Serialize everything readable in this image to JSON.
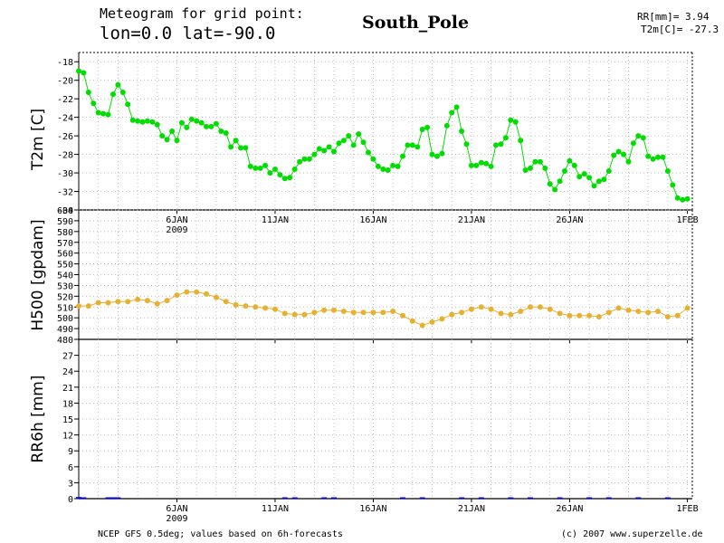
{
  "header": {
    "title": "Meteogram for grid point:",
    "coords": "lon=0.0 lat=-90.0",
    "station": "South_Pole",
    "rr_readout": "RR[mm]= 3.94",
    "t2m_readout": "T2m[C]= -27.3"
  },
  "footer": {
    "source": "NCEP GFS 0.5deg; values based on 6h-forecasts",
    "copyright": "(c) 2007 www.superzelle.de"
  },
  "chart_data": [
    {
      "type": "line",
      "ylabel": "T2m [C]",
      "ylim": [
        -34,
        -17
      ],
      "yticks": [
        -18,
        -20,
        -22,
        -24,
        -26,
        -28,
        -30,
        -32,
        -34
      ],
      "x_unit": "days since 2009-01-01",
      "xlim": [
        0,
        31.25
      ],
      "grid": true,
      "color": "#00dd00",
      "series": [
        {
          "x": [
            0,
            0.25,
            0.5,
            0.75,
            1,
            1.25,
            1.5,
            1.75,
            2,
            2.25,
            2.5,
            2.75,
            3,
            3.25,
            3.5,
            3.75,
            4,
            4.25,
            4.5,
            4.75,
            5,
            5.25,
            5.5,
            5.75,
            6,
            6.25,
            6.5,
            6.75,
            7,
            7.25,
            7.5,
            7.75,
            8,
            8.25,
            8.5,
            8.75,
            9,
            9.25,
            9.5,
            9.75,
            10,
            10.25,
            10.5,
            10.75,
            11,
            11.25,
            11.5,
            11.75,
            12,
            12.25,
            12.5,
            12.75,
            13,
            13.25,
            13.5,
            13.75,
            14,
            14.25,
            14.5,
            14.75,
            15,
            15.25,
            15.5,
            15.75,
            16,
            16.25,
            16.5,
            16.75,
            17,
            17.25,
            17.5,
            17.75,
            18,
            18.25,
            18.5,
            18.75,
            19,
            19.25,
            19.5,
            19.75,
            20,
            20.25,
            20.5,
            20.75,
            21,
            21.25,
            21.5,
            21.75,
            22,
            22.25,
            22.5,
            22.75,
            23,
            23.25,
            23.5,
            23.75,
            24,
            24.25,
            24.5,
            24.75,
            25,
            25.25,
            25.5,
            25.75,
            26,
            26.25,
            26.5,
            26.75,
            27,
            27.25,
            27.5,
            27.75,
            28,
            28.25,
            28.5,
            28.75,
            29,
            29.25,
            29.5,
            29.75,
            30,
            30.25,
            30.5,
            30.75,
            31
          ],
          "values": [
            -19.0,
            -19.2,
            -21.3,
            -22.5,
            -23.5,
            -23.6,
            -23.7,
            -21.5,
            -20.5,
            -21.3,
            -22.6,
            -24.3,
            -24.4,
            -24.5,
            -24.4,
            -24.5,
            -24.8,
            -26.0,
            -26.4,
            -25.5,
            -26.5,
            -24.6,
            -25.1,
            -24.2,
            -24.4,
            -24.6,
            -25.0,
            -25.0,
            -24.7,
            -25.5,
            -25.7,
            -27.2,
            -26.5,
            -27.3,
            -27.3,
            -29.3,
            -29.5,
            -29.5,
            -29.2,
            -30.0,
            -29.6,
            -30.2,
            -30.6,
            -30.5,
            -29.6,
            -28.8,
            -28.5,
            -28.5,
            -28.0,
            -27.4,
            -27.6,
            -27.2,
            -27.7,
            -26.8,
            -26.5,
            -26.0,
            -27.0,
            -25.8,
            -26.7,
            -27.8,
            -28.5,
            -29.3,
            -29.6,
            -29.7,
            -29.2,
            -29.3,
            -28.2,
            -27.0,
            -27.0,
            -27.2,
            -25.3,
            -25.1,
            -28.0,
            -28.2,
            -27.9,
            -24.9,
            -23.5,
            -22.9,
            -25.5,
            -26.9,
            -29.2,
            -29.2,
            -28.9,
            -29.0,
            -29.3,
            -27.0,
            -26.9,
            -26.2,
            -24.3,
            -24.5,
            -26.5,
            -29.7,
            -29.5,
            -28.8,
            -28.8,
            -29.5,
            -31.2,
            -31.8,
            -30.9,
            -29.8,
            -28.7,
            -29.2,
            -30.4,
            -30.1,
            -30.5,
            -31.4,
            -30.9,
            -30.7,
            -29.8,
            -28.1,
            -27.7,
            -28.0,
            -28.8,
            -26.8,
            -26.0,
            -26.2,
            -28.2,
            -28.5,
            -28.3,
            -28.3,
            -29.8,
            -31.3,
            -32.7,
            -32.9,
            -32.8
          ]
        }
      ]
    },
    {
      "type": "line",
      "ylabel": "H500 [gpdam]",
      "ylim": [
        480,
        600
      ],
      "yticks": [
        480,
        490,
        500,
        510,
        520,
        530,
        540,
        550,
        560,
        570,
        580,
        590,
        600
      ],
      "x_unit": "days since 2009-01-01",
      "xlim": [
        0,
        31.25
      ],
      "grid": true,
      "color": "#e8b030",
      "series": [
        {
          "x": [
            0,
            0.5,
            1,
            1.5,
            2,
            2.5,
            3,
            3.5,
            4,
            4.5,
            5,
            5.5,
            6,
            6.5,
            7,
            7.5,
            8,
            8.5,
            9,
            9.5,
            10,
            10.5,
            11,
            11.5,
            12,
            12.5,
            13,
            13.5,
            14,
            14.5,
            15,
            15.5,
            16,
            16.5,
            17,
            17.5,
            18,
            18.5,
            19,
            19.5,
            20,
            20.5,
            21,
            21.5,
            22,
            22.5,
            23,
            23.5,
            24,
            24.5,
            25,
            25.5,
            26,
            26.5,
            27,
            27.5,
            28,
            28.5,
            29,
            29.5,
            30,
            30.5,
            31
          ],
          "values": [
            511,
            511,
            514,
            514,
            515,
            515,
            517,
            516,
            513,
            516,
            521,
            524,
            524,
            522,
            519,
            515,
            512,
            511,
            510,
            509,
            508,
            504,
            503,
            503,
            505,
            507,
            507,
            506,
            505,
            505,
            505,
            505,
            506,
            502,
            497,
            493,
            496,
            499,
            503,
            505,
            508,
            510,
            508,
            504,
            503,
            506,
            510,
            510,
            508,
            504,
            502,
            502,
            502,
            501,
            505,
            509,
            507,
            506,
            505,
            506,
            501,
            502,
            509
          ]
        }
      ]
    },
    {
      "type": "bar",
      "ylabel": "RR6h [mm]",
      "ylim": [
        0,
        30
      ],
      "yticks": [
        0,
        3,
        6,
        9,
        12,
        15,
        18,
        21,
        24,
        27
      ],
      "x_unit": "days since 2009-01-01",
      "xlim": [
        0,
        31.25
      ],
      "xticks": [
        {
          "x": 5,
          "label": "6JAN",
          "sublabel": "2009"
        },
        {
          "x": 10,
          "label": "11JAN"
        },
        {
          "x": 15,
          "label": "16JAN"
        },
        {
          "x": 20,
          "label": "21JAN"
        },
        {
          "x": 25,
          "label": "26JAN"
        },
        {
          "x": 31,
          "label": "1FEB"
        }
      ],
      "grid": true,
      "color": "#0000ff",
      "series": [
        {
          "x": [
            0,
            0.25,
            1.5,
            1.75,
            2,
            10.5,
            11,
            12.5,
            13,
            16.5,
            17.5,
            19.5,
            20.5,
            22,
            23,
            24.5,
            26,
            27,
            28.5,
            30
          ],
          "values": [
            0.3,
            0.2,
            0.1,
            0.2,
            0.25,
            0.05,
            0.05,
            0.05,
            0.05,
            0.05,
            0.1,
            0.05,
            0.05,
            0.05,
            0.1,
            0.05,
            0.05,
            0.05,
            0.05,
            0.05
          ]
        }
      ]
    }
  ]
}
